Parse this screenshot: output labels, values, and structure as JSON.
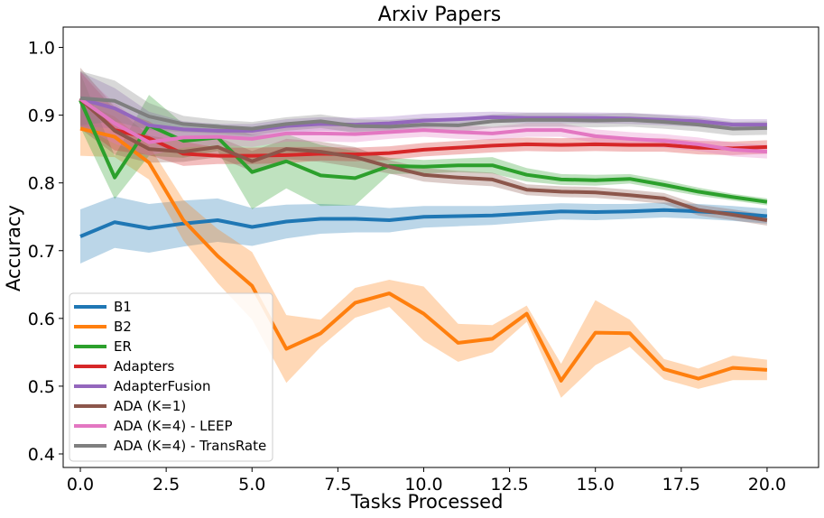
{
  "chart_data": {
    "type": "line",
    "title": "Arxiv Papers",
    "xlabel": "Tasks Processed",
    "ylabel": "Accuracy",
    "xlim": [
      -0.5,
      21.5
    ],
    "ylim": [
      0.38,
      1.03
    ],
    "x_ticks": [
      0.0,
      2.5,
      5.0,
      7.5,
      10.0,
      12.5,
      15.0,
      17.5,
      20.0
    ],
    "x_tick_labels": [
      "0.0",
      "2.5",
      "5.0",
      "7.5",
      "10.0",
      "12.5",
      "15.0",
      "17.5",
      "20.0"
    ],
    "y_ticks": [
      0.4,
      0.5,
      0.6,
      0.7,
      0.8,
      0.9,
      1.0
    ],
    "y_tick_labels": [
      "0.4",
      "0.5",
      "0.6",
      "0.7",
      "0.8",
      "0.9",
      "1.0"
    ],
    "legend_position": "lower-left",
    "x": [
      0,
      1,
      2,
      3,
      4,
      5,
      6,
      7,
      8,
      9,
      10,
      11,
      12,
      13,
      14,
      15,
      16,
      17,
      18,
      19,
      20
    ],
    "series": [
      {
        "name": "B1",
        "color": "#1f77b4",
        "values": [
          0.721,
          0.742,
          0.733,
          0.74,
          0.745,
          0.735,
          0.743,
          0.747,
          0.747,
          0.745,
          0.75,
          0.751,
          0.752,
          0.755,
          0.758,
          0.757,
          0.758,
          0.76,
          0.758,
          0.755,
          0.751
        ],
        "band": [
          0.04,
          0.038,
          0.036,
          0.034,
          0.032,
          0.028,
          0.025,
          0.022,
          0.02,
          0.018,
          0.016,
          0.015,
          0.014,
          0.013,
          0.012,
          0.012,
          0.011,
          0.011,
          0.011,
          0.011,
          0.011
        ]
      },
      {
        "name": "B2",
        "color": "#ff7f0e",
        "values": [
          0.88,
          0.868,
          0.83,
          0.745,
          0.692,
          0.648,
          0.555,
          0.578,
          0.623,
          0.637,
          0.607,
          0.564,
          0.57,
          0.607,
          0.508,
          0.579,
          0.578,
          0.525,
          0.511,
          0.527,
          0.524
        ],
        "band": [
          0.04,
          0.03,
          0.025,
          0.03,
          0.04,
          0.05,
          0.05,
          0.02,
          0.022,
          0.02,
          0.04,
          0.028,
          0.02,
          0.012,
          0.025,
          0.048,
          0.02,
          0.015,
          0.015,
          0.018,
          0.015
        ]
      },
      {
        "name": "ER",
        "color": "#2ca02c",
        "values": [
          0.922,
          0.808,
          0.885,
          0.862,
          0.867,
          0.816,
          0.832,
          0.811,
          0.807,
          0.825,
          0.824,
          0.826,
          0.826,
          0.812,
          0.805,
          0.804,
          0.806,
          0.797,
          0.787,
          0.779,
          0.772
        ],
        "band": [
          0.04,
          0.032,
          0.045,
          0.025,
          0.02,
          0.055,
          0.04,
          0.045,
          0.04,
          0.012,
          0.01,
          0.01,
          0.012,
          0.01,
          0.008,
          0.008,
          0.007,
          0.007,
          0.006,
          0.005,
          0.005
        ]
      },
      {
        "name": "Adapters",
        "color": "#d62728",
        "values": [
          0.924,
          0.878,
          0.866,
          0.843,
          0.84,
          0.84,
          0.841,
          0.843,
          0.842,
          0.844,
          0.849,
          0.852,
          0.855,
          0.857,
          0.856,
          0.857,
          0.856,
          0.856,
          0.852,
          0.851,
          0.853
        ],
        "band": [
          0.04,
          0.03,
          0.025,
          0.018,
          0.012,
          0.012,
          0.012,
          0.01,
          0.01,
          0.01,
          0.01,
          0.01,
          0.01,
          0.01,
          0.01,
          0.01,
          0.01,
          0.01,
          0.01,
          0.01,
          0.01
        ]
      },
      {
        "name": "AdapterFusion",
        "color": "#9467bd",
        "values": [
          0.924,
          0.91,
          0.885,
          0.879,
          0.877,
          0.877,
          0.884,
          0.887,
          0.886,
          0.888,
          0.892,
          0.894,
          0.897,
          0.896,
          0.896,
          0.896,
          0.895,
          0.893,
          0.891,
          0.886,
          0.886
        ],
        "band": [
          0.04,
          0.03,
          0.02,
          0.012,
          0.01,
          0.01,
          0.01,
          0.01,
          0.01,
          0.01,
          0.01,
          0.01,
          0.008,
          0.008,
          0.008,
          0.008,
          0.008,
          0.008,
          0.008,
          0.008,
          0.008
        ]
      },
      {
        "name": "ADA (K=1)",
        "color": "#8c564b",
        "values": [
          0.925,
          0.877,
          0.85,
          0.846,
          0.853,
          0.832,
          0.85,
          0.846,
          0.838,
          0.824,
          0.812,
          0.808,
          0.805,
          0.79,
          0.787,
          0.786,
          0.782,
          0.777,
          0.76,
          0.753,
          0.745
        ],
        "band": [
          0.045,
          0.035,
          0.02,
          0.015,
          0.015,
          0.015,
          0.015,
          0.015,
          0.015,
          0.01,
          0.01,
          0.01,
          0.01,
          0.008,
          0.008,
          0.008,
          0.008,
          0.008,
          0.008,
          0.008,
          0.008
        ]
      },
      {
        "name": "ADA (K=4) - LEEP",
        "color": "#e377c2",
        "values": [
          0.924,
          0.888,
          0.86,
          0.867,
          0.868,
          0.865,
          0.873,
          0.873,
          0.872,
          0.875,
          0.878,
          0.875,
          0.873,
          0.878,
          0.878,
          0.869,
          0.865,
          0.862,
          0.857,
          0.849,
          0.846
        ],
        "band": [
          0.04,
          0.03,
          0.02,
          0.015,
          0.012,
          0.012,
          0.012,
          0.012,
          0.012,
          0.01,
          0.01,
          0.01,
          0.01,
          0.01,
          0.01,
          0.01,
          0.01,
          0.01,
          0.01,
          0.01,
          0.01
        ]
      },
      {
        "name": "ADA (K=4) - TransRate",
        "color": "#7f7f7f",
        "values": [
          0.925,
          0.921,
          0.898,
          0.887,
          0.883,
          0.88,
          0.887,
          0.891,
          0.884,
          0.883,
          0.886,
          0.885,
          0.891,
          0.893,
          0.893,
          0.892,
          0.893,
          0.89,
          0.886,
          0.88,
          0.881
        ],
        "band": [
          0.04,
          0.03,
          0.02,
          0.012,
          0.01,
          0.01,
          0.01,
          0.01,
          0.01,
          0.01,
          0.01,
          0.01,
          0.01,
          0.01,
          0.01,
          0.01,
          0.01,
          0.01,
          0.01,
          0.01,
          0.01
        ]
      }
    ]
  }
}
